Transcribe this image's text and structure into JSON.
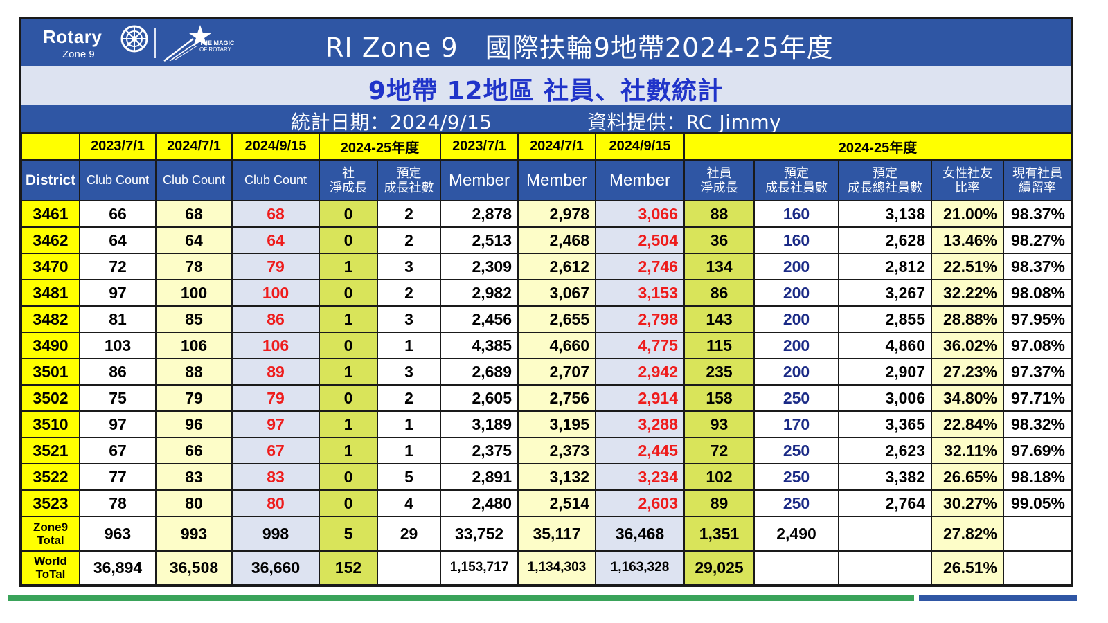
{
  "header": {
    "logo_rotary": "Rotary",
    "logo_zone": "Zone 9",
    "logo_magic_line1": "THE MAGIC",
    "logo_magic_line2": "OF ROTARY",
    "title": "RI Zone 9　國際扶輪9地帶2024-25年度",
    "subtitle": "9地帶 12地區 社員、社數統計",
    "date_text": "統計日期：2024/9/15",
    "source_text": "資料提供：RC Jimmy"
  },
  "colors": {
    "banner_blue": "#2f56a4",
    "subtitle_blue": "#2034c9",
    "highlight_yellow": "#ffff00",
    "light_yellow": "#fdfdc8",
    "light_blue": "#dde3f1",
    "lime_green": "#d9e45a",
    "value_red": "#ee1c1c",
    "value_navy": "#1a2a86",
    "footer_green": "#3aa35a"
  },
  "table": {
    "date_row": [
      "",
      "2023/7/1",
      "2024/7/1",
      "2024/9/15",
      "2024-25年度",
      "2023/7/1",
      "2024/7/1",
      "2024/9/15",
      "2024-25年度"
    ],
    "header_row": {
      "district": "District",
      "club_count": "Club Count",
      "club_net_growth_1": "社",
      "club_net_growth_2": "淨成長",
      "club_target_1": "預定",
      "club_target_2": "成長社數",
      "member": "Member",
      "member_net_growth_1": "社員",
      "member_net_growth_2": "淨成長",
      "member_target_1": "預定",
      "member_target_2": "成長社員數",
      "member_total_target_1": "預定",
      "member_total_target_2": "成長總社員數",
      "female_ratio_1": "女性社友",
      "female_ratio_2": "比率",
      "retention_1": "現有社員",
      "retention_2": "續留率"
    },
    "rows": [
      {
        "district": "3461",
        "c2023": "66",
        "c2024": "68",
        "c2024s": "68",
        "cnet": "0",
        "ctarget": "2",
        "m2023": "2,878",
        "m2024": "2,978",
        "m2024s": "3,066",
        "mnet": "88",
        "mtarget": "160",
        "mtotal": "3,138",
        "female": "21.00%",
        "retention": "98.37%"
      },
      {
        "district": "3462",
        "c2023": "64",
        "c2024": "64",
        "c2024s": "64",
        "cnet": "0",
        "ctarget": "2",
        "m2023": "2,513",
        "m2024": "2,468",
        "m2024s": "2,504",
        "mnet": "36",
        "mtarget": "160",
        "mtotal": "2,628",
        "female": "13.46%",
        "retention": "98.27%"
      },
      {
        "district": "3470",
        "c2023": "72",
        "c2024": "78",
        "c2024s": "79",
        "cnet": "1",
        "ctarget": "3",
        "m2023": "2,309",
        "m2024": "2,612",
        "m2024s": "2,746",
        "mnet": "134",
        "mtarget": "200",
        "mtotal": "2,812",
        "female": "22.51%",
        "retention": "98.37%"
      },
      {
        "district": "3481",
        "c2023": "97",
        "c2024": "100",
        "c2024s": "100",
        "cnet": "0",
        "ctarget": "2",
        "m2023": "2,982",
        "m2024": "3,067",
        "m2024s": "3,153",
        "mnet": "86",
        "mtarget": "200",
        "mtotal": "3,267",
        "female": "32.22%",
        "retention": "98.08%"
      },
      {
        "district": "3482",
        "c2023": "81",
        "c2024": "85",
        "c2024s": "86",
        "cnet": "1",
        "ctarget": "3",
        "m2023": "2,456",
        "m2024": "2,655",
        "m2024s": "2,798",
        "mnet": "143",
        "mtarget": "200",
        "mtotal": "2,855",
        "female": "28.88%",
        "retention": "97.95%"
      },
      {
        "district": "3490",
        "c2023": "103",
        "c2024": "106",
        "c2024s": "106",
        "cnet": "0",
        "ctarget": "1",
        "m2023": "4,385",
        "m2024": "4,660",
        "m2024s": "4,775",
        "mnet": "115",
        "mtarget": "200",
        "mtotal": "4,860",
        "female": "36.02%",
        "retention": "97.08%"
      },
      {
        "district": "3501",
        "c2023": "86",
        "c2024": "88",
        "c2024s": "89",
        "cnet": "1",
        "ctarget": "3",
        "m2023": "2,689",
        "m2024": "2,707",
        "m2024s": "2,942",
        "mnet": "235",
        "mtarget": "200",
        "mtotal": "2,907",
        "female": "27.23%",
        "retention": "97.37%"
      },
      {
        "district": "3502",
        "c2023": "75",
        "c2024": "79",
        "c2024s": "79",
        "cnet": "0",
        "ctarget": "2",
        "m2023": "2,605",
        "m2024": "2,756",
        "m2024s": "2,914",
        "mnet": "158",
        "mtarget": "250",
        "mtotal": "3,006",
        "female": "34.80%",
        "retention": "97.71%"
      },
      {
        "district": "3510",
        "c2023": "97",
        "c2024": "96",
        "c2024s": "97",
        "cnet": "1",
        "ctarget": "1",
        "m2023": "3,189",
        "m2024": "3,195",
        "m2024s": "3,288",
        "mnet": "93",
        "mtarget": "170",
        "mtotal": "3,365",
        "female": "22.84%",
        "retention": "98.32%"
      },
      {
        "district": "3521",
        "c2023": "67",
        "c2024": "66",
        "c2024s": "67",
        "cnet": "1",
        "ctarget": "1",
        "m2023": "2,375",
        "m2024": "2,373",
        "m2024s": "2,445",
        "mnet": "72",
        "mtarget": "250",
        "mtotal": "2,623",
        "female": "32.11%",
        "retention": "97.69%"
      },
      {
        "district": "3522",
        "c2023": "77",
        "c2024": "83",
        "c2024s": "83",
        "cnet": "0",
        "ctarget": "5",
        "m2023": "2,891",
        "m2024": "3,132",
        "m2024s": "3,234",
        "mnet": "102",
        "mtarget": "250",
        "mtotal": "3,382",
        "female": "26.65%",
        "retention": "98.18%"
      },
      {
        "district": "3523",
        "c2023": "78",
        "c2024": "80",
        "c2024s": "80",
        "cnet": "0",
        "ctarget": "4",
        "m2023": "2,480",
        "m2024": "2,514",
        "m2024s": "2,603",
        "mnet": "89",
        "mtarget": "250",
        "mtotal": "2,764",
        "female": "30.27%",
        "retention": "99.05%"
      }
    ],
    "zone_total": {
      "label_1": "Zone9",
      "label_2": "Total",
      "c2023": "963",
      "c2024": "993",
      "c2024s": "998",
      "cnet": "5",
      "ctarget": "29",
      "m2023": "33,752",
      "m2024": "35,117",
      "m2024s": "36,468",
      "mnet": "1,351",
      "mtarget": "2,490",
      "mtotal": "",
      "female": "27.82%",
      "retention": ""
    },
    "world_total": {
      "label_1": "World",
      "label_2": "ToTal",
      "c2023": "36,894",
      "c2024": "36,508",
      "c2024s": "36,660",
      "cnet": "152",
      "ctarget": "",
      "m2023": "1,153,717",
      "m2024": "1,134,303",
      "m2024s": "1,163,328",
      "mnet": "29,025",
      "mtarget": "",
      "mtotal": "",
      "female": "26.51%",
      "retention": ""
    }
  }
}
